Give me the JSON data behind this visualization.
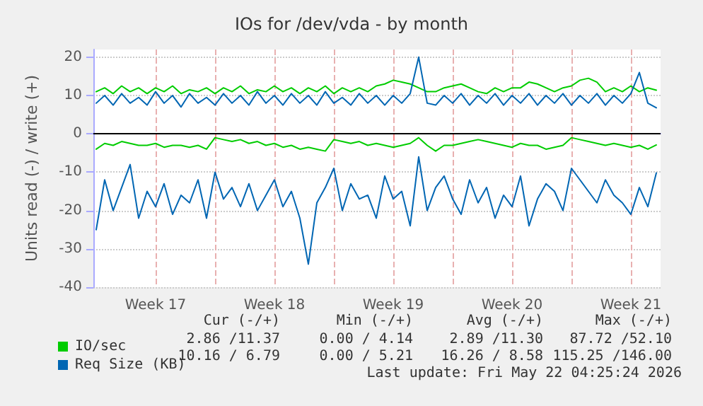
{
  "chart_data": {
    "type": "line",
    "title": "IOs for /dev/vda - by month",
    "ylabel": "Units read (-) / write (+)",
    "x": [
      "2026-04-20T00:00",
      "2026-04-20T12:00",
      "2026-04-21T00:00",
      "2026-04-21T12:00",
      "2026-04-22T00:00",
      "2026-04-22T12:00",
      "2026-04-23T00:00",
      "2026-04-23T12:00",
      "2026-04-24T00:00",
      "2026-04-24T12:00",
      "2026-04-25T00:00",
      "2026-04-25T12:00",
      "2026-04-26T00:00",
      "2026-04-26T12:00",
      "2026-04-27T00:00",
      "2026-04-27T12:00",
      "2026-04-28T00:00",
      "2026-04-28T12:00",
      "2026-04-29T00:00",
      "2026-04-29T12:00",
      "2026-04-30T00:00",
      "2026-04-30T12:00",
      "2026-05-01T00:00",
      "2026-05-01T12:00",
      "2026-05-02T00:00",
      "2026-05-02T12:00",
      "2026-05-03T00:00",
      "2026-05-03T12:00",
      "2026-05-04T00:00",
      "2026-05-04T12:00",
      "2026-05-05T00:00",
      "2026-05-05T12:00",
      "2026-05-06T00:00",
      "2026-05-06T12:00",
      "2026-05-07T00:00",
      "2026-05-07T12:00",
      "2026-05-08T00:00",
      "2026-05-08T12:00",
      "2026-05-09T00:00",
      "2026-05-09T12:00",
      "2026-05-10T00:00",
      "2026-05-10T12:00",
      "2026-05-11T00:00",
      "2026-05-11T12:00",
      "2026-05-12T00:00",
      "2026-05-12T12:00",
      "2026-05-13T00:00",
      "2026-05-13T12:00",
      "2026-05-14T00:00",
      "2026-05-14T12:00",
      "2026-05-15T00:00",
      "2026-05-15T12:00",
      "2026-05-16T00:00",
      "2026-05-16T12:00",
      "2026-05-17T00:00",
      "2026-05-17T12:00",
      "2026-05-18T00:00",
      "2026-05-18T12:00",
      "2026-05-19T00:00",
      "2026-05-19T12:00",
      "2026-05-20T00:00",
      "2026-05-20T12:00",
      "2026-05-21T00:00",
      "2026-05-21T12:00",
      "2026-05-22T00:00",
      "2026-05-22T12:00",
      "2026-05-23T00:00"
    ],
    "series": [
      {
        "name": "IO/sec",
        "color": "#00cc00",
        "values": [
          11,
          12,
          10.5,
          12.5,
          11,
          12,
          10.5,
          12,
          11,
          12.5,
          10.5,
          11.5,
          11,
          12,
          10.5,
          12,
          11,
          12.5,
          10.5,
          11.5,
          11,
          12.5,
          11,
          12,
          10.5,
          12,
          11,
          12.5,
          10.5,
          12,
          11,
          12,
          11,
          12.5,
          13,
          14,
          13.5,
          13,
          12,
          11,
          11,
          12,
          12.5,
          13,
          12,
          11,
          10.5,
          12,
          11,
          12,
          12,
          13.5,
          13,
          12,
          11,
          12,
          12.5,
          14,
          14.5,
          13.5,
          11,
          12,
          11,
          12.5,
          11,
          12,
          11.4
        ]
      },
      {
        "color": "#00cc00",
        "values": [
          -4,
          -2.5,
          -3,
          -2,
          -2.5,
          -3,
          -3,
          -2.5,
          -3.5,
          -3,
          -3,
          -3.5,
          -3,
          -4,
          -1,
          -1.5,
          -2,
          -1.5,
          -2.5,
          -2,
          -3,
          -2.5,
          -3.5,
          -3,
          -4,
          -3.5,
          -4,
          -4.5,
          -1.5,
          -2,
          -2.5,
          -2,
          -3,
          -2.5,
          -3,
          -3.5,
          -3,
          -2.5,
          -1,
          -3,
          -4.5,
          -3,
          -3,
          -2.5,
          -2,
          -1.5,
          -2,
          -2.5,
          -3,
          -3.5,
          -2.5,
          -3,
          -3,
          -4,
          -3.5,
          -3,
          -1,
          -1.5,
          -2,
          -2.5,
          -3,
          -2.5,
          -3,
          -3.5,
          -3,
          -4,
          -2.9
        ]
      },
      {
        "name": "Req Size (KB)",
        "color": "#0066b3",
        "values": [
          8,
          10,
          7.5,
          10.5,
          8,
          9.5,
          7.5,
          11,
          8,
          10,
          7,
          10.5,
          8,
          9.5,
          7.5,
          10.5,
          8,
          10,
          7.5,
          11,
          8,
          10,
          7.5,
          10.5,
          8,
          10,
          7.5,
          11,
          8,
          9.5,
          7.5,
          10.5,
          8,
          10,
          7.5,
          10,
          8,
          10.5,
          20,
          8,
          7.5,
          10,
          8,
          10.5,
          7.5,
          10,
          8,
          10.5,
          7.5,
          10,
          8,
          10.5,
          7.5,
          10,
          8,
          10.5,
          7.5,
          10,
          8,
          10.5,
          7.5,
          10,
          8,
          10.5,
          16,
          8,
          6.8
        ]
      },
      {
        "color": "#0066b3",
        "values": [
          -25,
          -12,
          -20,
          -14,
          -8,
          -22,
          -15,
          -19,
          -13,
          -21,
          -16,
          -18,
          -12,
          -22,
          -10,
          -17,
          -14,
          -19,
          -13,
          -20,
          -16,
          -12,
          -19,
          -15,
          -22,
          -34,
          -18,
          -14,
          -9,
          -20,
          -13,
          -17,
          -16,
          -22,
          -11,
          -17,
          -15,
          -24,
          -6,
          -20,
          -14,
          -11,
          -17,
          -21,
          -12,
          -18,
          -14,
          -22,
          -16,
          -19,
          -11,
          -24,
          -17,
          -13,
          -15,
          -20,
          -9,
          -12,
          -15,
          -18,
          -12,
          -16,
          -18,
          -21,
          -14,
          -19,
          -10.2
        ]
      }
    ],
    "xlim": [
      "2026-04-19T20:00",
      "2026-05-23T06:00"
    ],
    "xticks": [
      {
        "value": "2026-04-23T12:00",
        "label": "Week 17"
      },
      {
        "value": "2026-04-27T00:00",
        "label": null
      },
      {
        "value": "2026-04-30T12:00",
        "label": "Week 18"
      },
      {
        "value": "2026-05-04T00:00",
        "label": null
      },
      {
        "value": "2026-05-07T12:00",
        "label": "Week 19"
      },
      {
        "value": "2026-05-11T00:00",
        "label": null
      },
      {
        "value": "2026-05-14T12:00",
        "label": "Week 20"
      },
      {
        "value": "2026-05-18T00:00",
        "label": null
      },
      {
        "value": "2026-05-21T12:00",
        "label": "Week 21"
      }
    ],
    "ylim": [
      -40,
      22
    ],
    "yticks": [
      -40,
      -30,
      -20,
      -10,
      0,
      10,
      20
    ],
    "ref_lines": [
      {
        "axis": "y",
        "value": 0,
        "color": "#000000"
      }
    ],
    "grid": true,
    "legend": "bottom left",
    "marker": "none",
    "line_style": "solid",
    "annotations": [
      "Cur (-/+)",
      "Min (-/+)",
      "Avg (-/+)",
      "Max (-/+)",
      "2.86 /11.37",
      "0.00 / 4.14",
      "2.89 /11.30",
      "87.72 /52.10",
      "10.16 / 6.79",
      "0.00 / 5.21",
      "16.26 / 8.58",
      "115.25 /146.00",
      "Last update: Fri May 22 04:25:24 2026"
    ]
  }
}
